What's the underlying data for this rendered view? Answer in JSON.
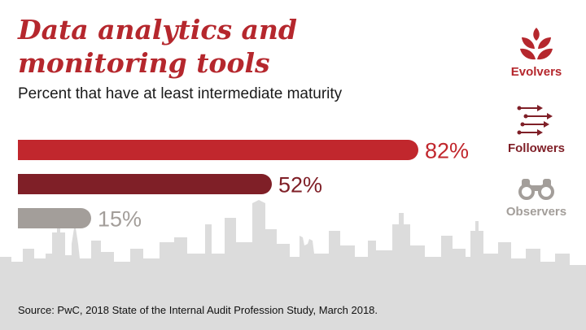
{
  "header": {
    "title_line1": "Data analytics and",
    "title_line2": "monitoring tools",
    "subtitle": "Percent that have at least intermediate maturity"
  },
  "chart_data": {
    "type": "bar",
    "orientation": "horizontal",
    "categories": [
      "Evolvers",
      "Followers",
      "Observers"
    ],
    "values": [
      82,
      52,
      15
    ],
    "value_labels": [
      "82%",
      "52%",
      "15%"
    ],
    "colors": [
      "#c1272d",
      "#7f1f27",
      "#a39e9a"
    ],
    "title": "",
    "xlabel": "",
    "ylabel": "",
    "xlim": [
      0,
      100
    ],
    "grid": false,
    "legend_position": "right"
  },
  "legend": {
    "items": [
      {
        "label": "Evolvers",
        "icon": "wheat-icon",
        "color": "#b5272d"
      },
      {
        "label": "Followers",
        "icon": "arrows-icon",
        "color": "#7f1f27"
      },
      {
        "label": "Observers",
        "icon": "binoculars-icon",
        "color": "#a39e9a"
      }
    ]
  },
  "footer": {
    "source": "Source: PwC, 2018 State of the Internal Audit Profession Study, March 2018."
  }
}
